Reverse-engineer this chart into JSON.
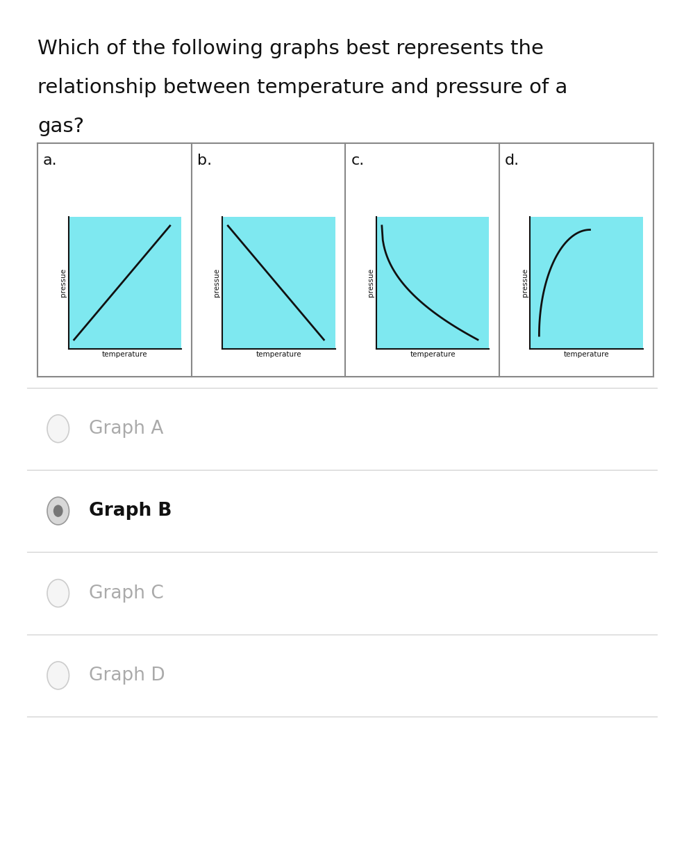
{
  "title_line1": "Which of the following graphs best represents the",
  "title_line2": "relationship between temperature and pressure of a",
  "title_line3": "gas?",
  "title_fontsize": 21,
  "bg_color": "#ffffff",
  "panel_bg": "#7ee8f0",
  "graph_labels": [
    "a.",
    "b.",
    "c.",
    "d."
  ],
  "xlabel": "temperature",
  "ylabel": "pressue",
  "options": [
    "Graph A",
    "Graph B",
    "Graph C",
    "Graph D"
  ],
  "selected_option": 1,
  "option_fontsize": 19,
  "option_selected_color": "#111111",
  "option_unselected_color": "#aaaaaa",
  "separator_color": "#cccccc",
  "outer_box_color": "#888888",
  "line_color": "#111111",
  "shapes": [
    "linear_up",
    "linear_down",
    "curve_concave_down",
    "curve_arc_down"
  ]
}
